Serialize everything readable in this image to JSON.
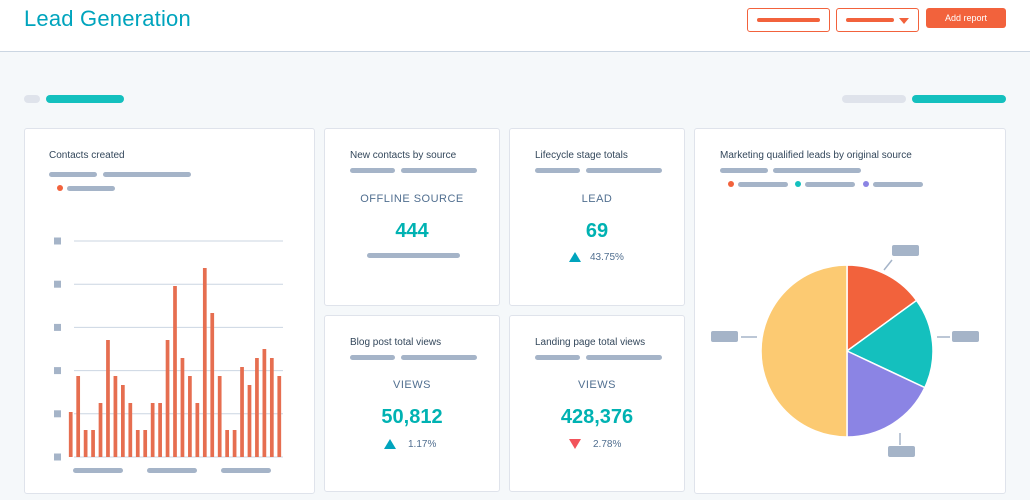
{
  "header": {
    "title": "Lead Generation",
    "add_report_label": "Add report"
  },
  "cards": {
    "contacts_created": {
      "title": "Contacts created"
    },
    "new_contacts": {
      "title": "New contacts by source",
      "label": "OFFLINE SOURCE",
      "value": "444"
    },
    "lifecycle": {
      "title": "Lifecycle stage totals",
      "label": "LEAD",
      "value": "69",
      "change": "43.75%"
    },
    "blog_views": {
      "title": "Blog post total views",
      "label": "VIEWS",
      "value": "50,812",
      "change": "1.17%"
    },
    "landing_views": {
      "title": "Landing page total views",
      "label": "VIEWS",
      "value": "428,376",
      "change": "2.78%"
    },
    "mql_source": {
      "title": "Marketing qualified leads by original source"
    }
  },
  "colors": {
    "accent": "#00a4bd",
    "orange": "#f2623c",
    "teal": "#14c0be",
    "purple": "#8b84e4",
    "yellow": "#fcca72",
    "placeholder": "#a5b4c8"
  },
  "chart_data": [
    {
      "type": "bar",
      "values": [
        5,
        9,
        3,
        3,
        6,
        13,
        9,
        8,
        6,
        3,
        3,
        6,
        6,
        13,
        19,
        11,
        9,
        6,
        21,
        16,
        9,
        3,
        3,
        10,
        8,
        11,
        12,
        11,
        9
      ],
      "ylim": [
        0,
        24
      ],
      "grid": true
    },
    {
      "type": "pie",
      "series": [
        {
          "value": 15,
          "color": "#f2623c"
        },
        {
          "value": 17,
          "color": "#14c0be"
        },
        {
          "value": 18,
          "color": "#8b84e4"
        },
        {
          "value": 50,
          "color": "#fcca72"
        }
      ]
    }
  ]
}
